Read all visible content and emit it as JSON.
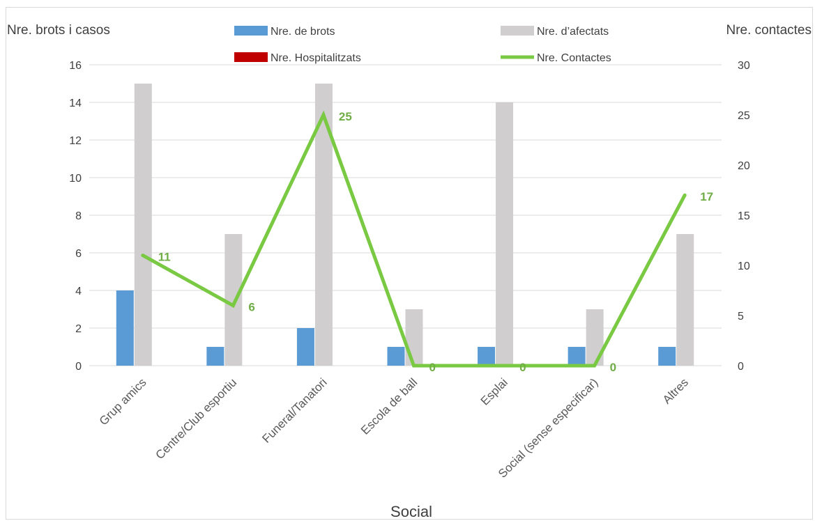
{
  "chart_data": {
    "type": "bar",
    "categories": [
      "Grup amics",
      "Centre/Club esportiu",
      "Funeral/Tanatori",
      "Escola de ball",
      "Esplai",
      "Social (sense especificar)",
      "Altres"
    ],
    "series": [
      {
        "name": "Nre. de brots",
        "kind": "bar",
        "axis": "left",
        "color": "#5b9bd5",
        "values": [
          4,
          1,
          2,
          1,
          1,
          1,
          1
        ]
      },
      {
        "name": "Nre. d’afectats",
        "kind": "bar",
        "axis": "left",
        "color": "#d0cece",
        "values": [
          15,
          7,
          15,
          3,
          14,
          3,
          7
        ]
      },
      {
        "name": "Nre. Hospitalitzats",
        "kind": "bar",
        "axis": "left",
        "color": "#c00000",
        "values": [
          0,
          0,
          0,
          0,
          0,
          0,
          0
        ]
      },
      {
        "name": "Nre. Contactes",
        "kind": "line",
        "axis": "right",
        "color": "#7ac943",
        "values": [
          11,
          6,
          25,
          0,
          0,
          0,
          17
        ]
      }
    ],
    "ylabel_left": "Nre. brots i casos",
    "ylabel_right": "Nre. contactes",
    "xlabel": "Social",
    "ylim_left": [
      0,
      16
    ],
    "yticks_left": [
      0,
      2,
      4,
      6,
      8,
      10,
      12,
      14,
      16
    ],
    "ylim_right": [
      0,
      30
    ],
    "yticks_right": [
      0,
      5,
      10,
      15,
      20,
      25,
      30
    ],
    "grid": true,
    "legend": "top"
  }
}
